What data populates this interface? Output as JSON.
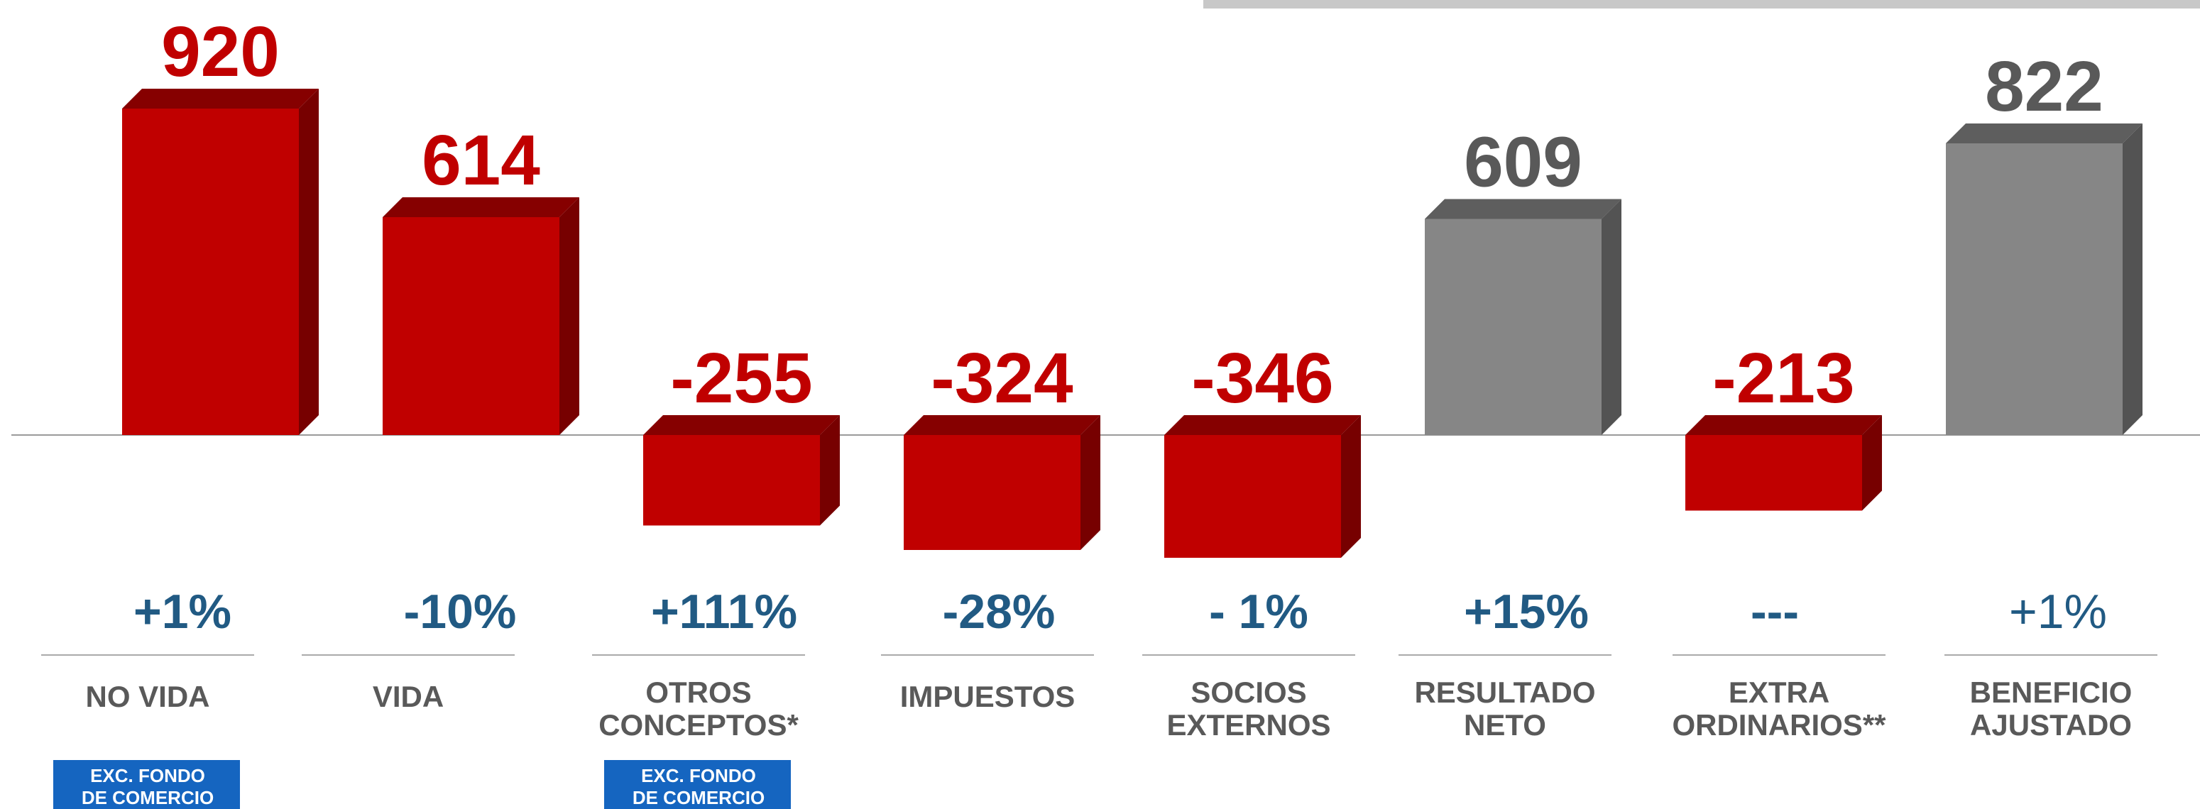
{
  "chart_data": {
    "type": "bar",
    "categories": [
      [
        "NO VIDA"
      ],
      [
        "VIDA"
      ],
      [
        "OTROS",
        "CONCEPTOS*"
      ],
      [
        "IMPUESTOS"
      ],
      [
        "SOCIOS",
        "EXTERNOS"
      ],
      [
        "RESULTADO",
        "NETO"
      ],
      [
        "EXTRA",
        "ORDINARIOS**"
      ],
      [
        "BENEFICIO",
        "AJUSTADO"
      ]
    ],
    "values": [
      920,
      614,
      -255,
      -324,
      -346,
      609,
      -213,
      822
    ],
    "colors": [
      "#c00000",
      "#c00000",
      "#c00000",
      "#c00000",
      "#c00000",
      "#868686",
      "#c00000",
      "#868686"
    ],
    "label_colors": [
      "#c00000",
      "#c00000",
      "#c00000",
      "#c00000",
      "#c00000",
      "#595959",
      "#c00000",
      "#595959"
    ],
    "changes": [
      "+1%",
      "-10%",
      "+111%",
      "-28%",
      "- 1%",
      "+15%",
      "---",
      "+1%"
    ],
    "badges": [
      [
        "EXC. FONDO",
        "DE COMERCIO"
      ],
      null,
      [
        "EXC. FONDO",
        "DE COMERCIO"
      ],
      null,
      null,
      null,
      null,
      null
    ]
  }
}
